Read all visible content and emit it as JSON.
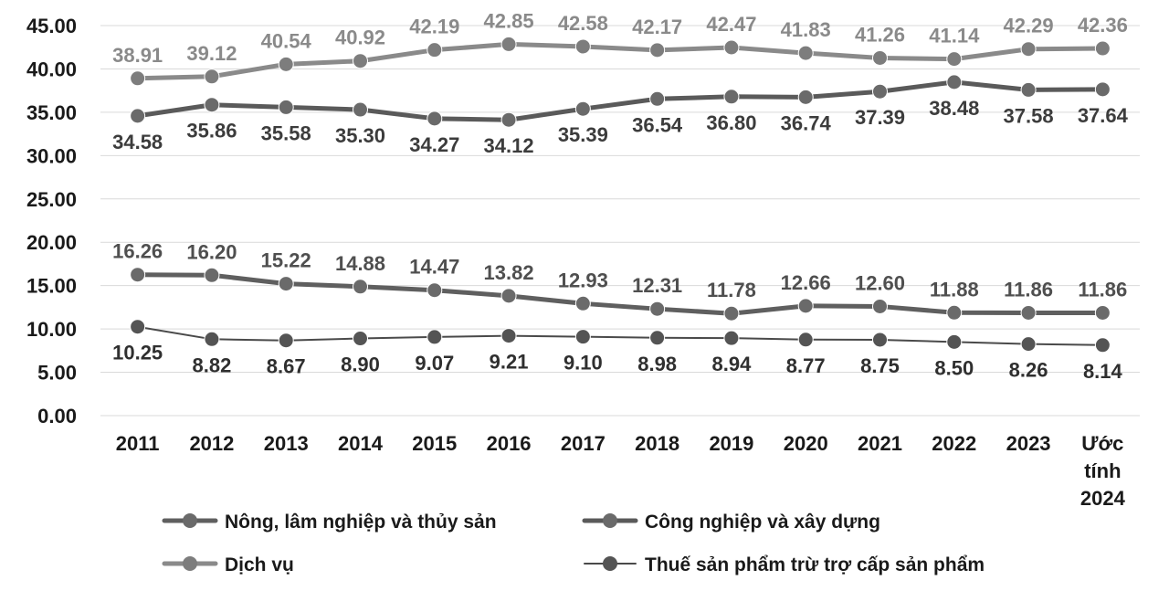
{
  "chart_data": {
    "type": "line",
    "categories": [
      "2011",
      "2012",
      "2013",
      "2014",
      "2015",
      "2016",
      "2017",
      "2018",
      "2019",
      "2020",
      "2021",
      "2022",
      "2023",
      "Ước tính 2024"
    ],
    "ylim": [
      0,
      45
    ],
    "yticks": [
      "0.00",
      "5.00",
      "10.00",
      "15.00",
      "20.00",
      "25.00",
      "30.00",
      "35.00",
      "40.00",
      "45.00"
    ],
    "grid": true,
    "legend_position": "bottom",
    "series": [
      {
        "name": "Nông, lâm nghiệp và thủy sản",
        "color": "#5f5f5f",
        "values": [
          16.26,
          16.2,
          15.22,
          14.88,
          14.47,
          13.82,
          12.93,
          12.31,
          11.78,
          12.66,
          12.6,
          11.88,
          11.86,
          11.86
        ],
        "labels": [
          "16.26",
          "16.20",
          "15.22",
          "14.88",
          "14.47",
          "13.82",
          "12.93",
          "12.31",
          "11.78",
          "12.66",
          "12.60",
          "11.88",
          "11.86",
          "11.86"
        ]
      },
      {
        "name": "Công nghiệp và xây dựng",
        "color": "#5f5f5f",
        "values": [
          34.58,
          35.86,
          35.58,
          35.3,
          34.27,
          34.12,
          35.39,
          36.54,
          36.8,
          36.74,
          37.39,
          38.48,
          37.58,
          37.64
        ],
        "labels": [
          "34.58",
          "35.86",
          "35.58",
          "35.30",
          "34.27",
          "34.12",
          "35.39",
          "36.54",
          "36.80",
          "36.74",
          "37.39",
          "38.48",
          "37.58",
          "37.64"
        ]
      },
      {
        "name": "Dịch vụ",
        "color": "#8a8a8a",
        "values": [
          38.91,
          39.12,
          40.54,
          40.92,
          42.19,
          42.85,
          42.58,
          42.17,
          42.47,
          41.83,
          41.26,
          41.14,
          42.29,
          42.36
        ],
        "labels": [
          "38.91",
          "39.12",
          "40.54",
          "40.92",
          "42.19",
          "42.85",
          "42.58",
          "42.17",
          "42.47",
          "41.83",
          "41.26",
          "41.14",
          "42.29",
          "42.36"
        ]
      },
      {
        "name": "Thuế sản phẩm trừ trợ cấp sản phẩm",
        "color": "#4a4a4a",
        "values": [
          10.25,
          8.82,
          8.67,
          8.9,
          9.07,
          9.21,
          9.1,
          8.98,
          8.94,
          8.77,
          8.75,
          8.5,
          8.26,
          8.14
        ],
        "labels": [
          "10.25",
          "8.82",
          "8.67",
          "8.90",
          "9.07",
          "9.21",
          "9.10",
          "8.98",
          "8.94",
          "8.77",
          "8.75",
          "8.50",
          "8.26",
          "8.14"
        ]
      }
    ]
  }
}
